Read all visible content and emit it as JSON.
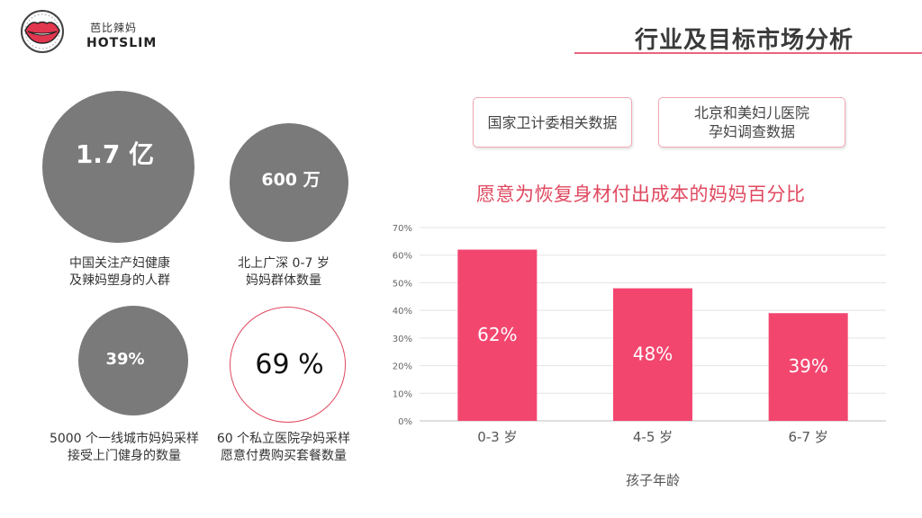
{
  "logo": {
    "cn": "芭比辣妈",
    "en": "HOTSLIM"
  },
  "header": {
    "title": "行业及目标市场分析"
  },
  "stats": [
    {
      "value": "1.7 亿",
      "caption_line1": "中国关注产妇健康",
      "caption_line2": "及辣妈塑身的人群"
    },
    {
      "value": "600 万",
      "caption_line1": "北上广深 0-7 岁",
      "caption_line2": "妈妈群体数量"
    },
    {
      "value": "39%",
      "caption_line1": "5000 个一线城市妈妈采样",
      "caption_line2": "接受上门健身的数量"
    },
    {
      "value": "69 %",
      "caption_line1": "60 个私立医院孕妈采样",
      "caption_line2": "愿意付费购买套餐数量"
    }
  ],
  "sources": [
    {
      "line1": "国家卫计委相关数据"
    },
    {
      "line1": "北京和美妇儿医院",
      "line2": "孕妇调查数据"
    }
  ],
  "colors": {
    "accent": "#e0485f",
    "bar": "#f3466f",
    "circle_gray": "#7a7a7a"
  },
  "chart_data": {
    "type": "bar",
    "title": "愿意为恢复身材付出成本的妈妈百分比",
    "xlabel": "孩子年龄",
    "ylabel": "",
    "categories": [
      "0-3 岁",
      "4-5 岁",
      "6-7 岁"
    ],
    "values": [
      62,
      48,
      39
    ],
    "data_labels": [
      "62%",
      "48%",
      "39%"
    ],
    "yticks": [
      "0%",
      "10%",
      "20%",
      "30%",
      "40%",
      "50%",
      "60%",
      "70%"
    ],
    "ylim": [
      0,
      70
    ],
    "grid": true,
    "legend": "none"
  }
}
